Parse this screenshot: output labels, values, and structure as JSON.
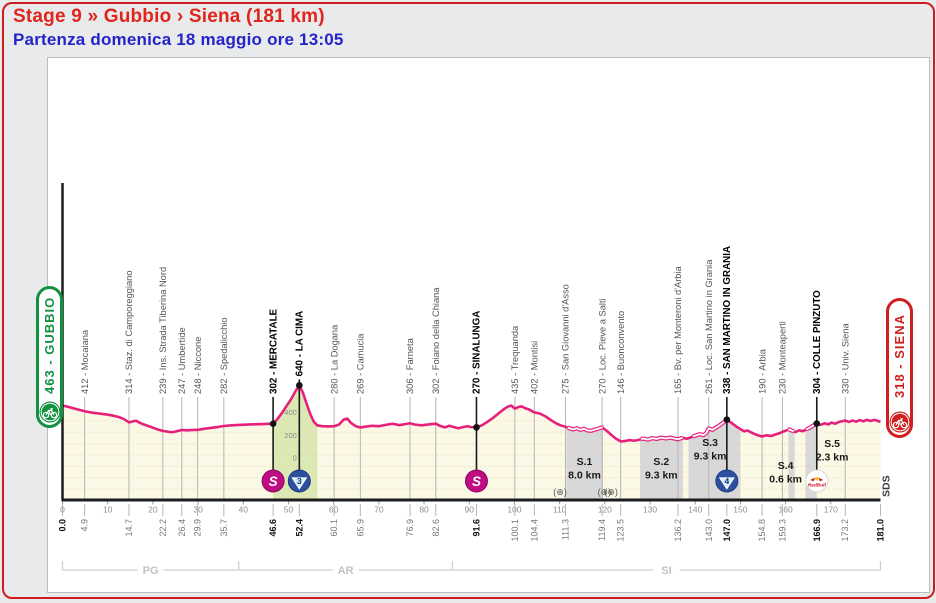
{
  "header": {
    "title": "Stage 9 » Gubbio › Siena (181 km)",
    "subtitle": "Partenza domenica 18 maggio ore 13:05",
    "title_color": "#e0251c",
    "subtitle_color": "#2424c8"
  },
  "chart_data": {
    "type": "area",
    "title": "Stage 9 elevation profile Gubbio - Siena",
    "x_unit": "km",
    "y_unit": "m",
    "xlim": [
      0,
      181
    ],
    "ylim": [
      0,
      700
    ],
    "x_ticks": [
      0,
      10,
      20,
      30,
      40,
      50,
      60,
      70,
      80,
      90,
      100,
      110,
      120,
      130,
      140,
      150,
      160,
      170
    ],
    "elev_scale": {
      "km": 52.4,
      "values": [
        "400",
        "200",
        "0"
      ]
    },
    "start": {
      "label": "463 - GUBBIO",
      "km": 0,
      "elev": 463,
      "km_label": "0.0",
      "color": "#12913e"
    },
    "finish": {
      "label": "318 - SIENA",
      "km": 181,
      "elev": 318,
      "km_label": "181.0",
      "color": "#cf1f1f"
    },
    "waypoints": [
      {
        "km": 4.9,
        "km_label": "4.9",
        "elev": 412,
        "label": "412 - Mocaiana",
        "bold": false
      },
      {
        "km": 14.7,
        "km_label": "14.7",
        "elev": 314,
        "label": "314 - Staz. di Camporeggiano",
        "bold": false
      },
      {
        "km": 22.2,
        "km_label": "22.2",
        "elev": 239,
        "label": "239 - Ins. Strada Tiberina Nord",
        "bold": false
      },
      {
        "km": 26.4,
        "km_label": "26.4",
        "elev": 247,
        "label": "247 - Umbertide",
        "bold": false
      },
      {
        "km": 29.9,
        "km_label": "29.9",
        "elev": 248,
        "label": "248 - Niccone",
        "bold": false
      },
      {
        "km": 35.7,
        "km_label": "35.7",
        "elev": 282,
        "label": "282 - Spedalicchio",
        "bold": false
      },
      {
        "km": 46.6,
        "km_label": "46.6",
        "elev": 302,
        "label": "302 - MERCATALE",
        "bold": true,
        "icon": "sprint"
      },
      {
        "km": 52.4,
        "km_label": "52.4",
        "elev": 640,
        "label": "640 - LA CIMA",
        "bold": true,
        "icon": "cat3"
      },
      {
        "km": 60.1,
        "km_label": "60.1",
        "elev": 280,
        "label": "280 - La Dogana",
        "bold": false
      },
      {
        "km": 65.9,
        "km_label": "65.9",
        "elev": 269,
        "label": "269 - Camucia",
        "bold": false
      },
      {
        "km": 76.9,
        "km_label": "76.9",
        "elev": 306,
        "label": "306 - Farneta",
        "bold": false
      },
      {
        "km": 82.6,
        "km_label": "82.6",
        "elev": 302,
        "label": "302 - Foiano della Chiana",
        "bold": false
      },
      {
        "km": 91.6,
        "km_label": "91.6",
        "elev": 270,
        "label": "270 - SINALUNGA",
        "bold": true,
        "icon": "sprint"
      },
      {
        "km": 100.1,
        "km_label": "100.1",
        "elev": 435,
        "label": "435 - Trequanda",
        "bold": false
      },
      {
        "km": 104.4,
        "km_label": "104.4",
        "elev": 402,
        "label": "402 - Montisi",
        "bold": false
      },
      {
        "km": 111.3,
        "km_label": "111.3",
        "elev": 275,
        "label": "275 - San Giovanni d'Asso",
        "bold": false
      },
      {
        "km": 119.4,
        "km_label": "119.4",
        "elev": 270,
        "label": "270 - Loc. Pieve a Salti",
        "bold": false
      },
      {
        "km": 123.5,
        "km_label": "123.5",
        "elev": 146,
        "label": "146 - Buonconvento",
        "bold": false
      },
      {
        "km": 136.2,
        "km_label": "136.2",
        "elev": 165,
        "label": "165 - Bv. per Monteroni d'Arbia",
        "bold": false
      },
      {
        "km": 143.0,
        "km_label": "143.0",
        "elev": 261,
        "label": "261 - Loc. San Martino in Grania",
        "bold": false
      },
      {
        "km": 147.0,
        "km_label": "147.0",
        "elev": 338,
        "label": "338 - SAN MARTINO IN GRANIA",
        "bold": true,
        "icon": "cat4"
      },
      {
        "km": 154.8,
        "km_label": "154.8",
        "elev": 190,
        "label": "190 - Arbia",
        "bold": false
      },
      {
        "km": 159.3,
        "km_label": "159.3",
        "elev": 230,
        "label": "230 - Monteaperti",
        "bold": false
      },
      {
        "km": 166.9,
        "km_label": "166.9",
        "elev": 304,
        "label": "304 - COLLE PINZUTO",
        "bold": true,
        "icon": "redbull"
      },
      {
        "km": 173.2,
        "km_label": "173.2",
        "elev": 330,
        "label": "330 - Univ. Siena",
        "bold": false
      }
    ],
    "profile": [
      [
        0,
        463
      ],
      [
        1.5,
        448
      ],
      [
        3,
        432
      ],
      [
        4.9,
        412
      ],
      [
        6.5,
        400
      ],
      [
        8,
        392
      ],
      [
        9.5,
        385
      ],
      [
        11,
        375
      ],
      [
        12.5,
        360
      ],
      [
        13.5,
        345
      ],
      [
        14.7,
        314
      ],
      [
        15.5,
        322
      ],
      [
        16.3,
        328
      ],
      [
        17,
        312
      ],
      [
        18,
        295
      ],
      [
        19.5,
        275
      ],
      [
        21,
        252
      ],
      [
        22.2,
        239
      ],
      [
        23.5,
        230
      ],
      [
        24.5,
        228
      ],
      [
        25.5,
        238
      ],
      [
        26.4,
        247
      ],
      [
        27.5,
        244
      ],
      [
        28.5,
        246
      ],
      [
        29.9,
        248
      ],
      [
        31.5,
        258
      ],
      [
        33,
        266
      ],
      [
        34.5,
        274
      ],
      [
        35.7,
        282
      ],
      [
        37.5,
        288
      ],
      [
        39.5,
        292
      ],
      [
        41.5,
        296
      ],
      [
        43.5,
        298
      ],
      [
        45,
        300
      ],
      [
        46.6,
        302
      ],
      [
        47.6,
        345
      ],
      [
        48.6,
        400
      ],
      [
        49.6,
        460
      ],
      [
        50.6,
        520
      ],
      [
        51.5,
        585
      ],
      [
        52.4,
        640
      ],
      [
        53.2,
        575
      ],
      [
        54,
        480
      ],
      [
        54.8,
        390
      ],
      [
        55.6,
        320
      ],
      [
        56.4,
        287
      ],
      [
        57.5,
        280
      ],
      [
        58.8,
        278
      ],
      [
        60.1,
        280
      ],
      [
        61.2,
        295
      ],
      [
        62.2,
        338
      ],
      [
        63,
        348
      ],
      [
        63.8,
        310
      ],
      [
        64.8,
        282
      ],
      [
        65.9,
        269
      ],
      [
        67,
        276
      ],
      [
        68.5,
        284
      ],
      [
        70,
        280
      ],
      [
        71.5,
        292
      ],
      [
        73,
        302
      ],
      [
        74.5,
        290
      ],
      [
        75.5,
        296
      ],
      [
        76.9,
        306
      ],
      [
        78,
        294
      ],
      [
        79.5,
        288
      ],
      [
        81,
        296
      ],
      [
        82.6,
        302
      ],
      [
        83.6,
        282
      ],
      [
        84.6,
        270
      ],
      [
        85.6,
        284
      ],
      [
        86.6,
        272
      ],
      [
        87.6,
        262
      ],
      [
        88.6,
        272
      ],
      [
        89.6,
        280
      ],
      [
        90.5,
        272
      ],
      [
        91.6,
        270
      ],
      [
        92.8,
        288
      ],
      [
        94,
        318
      ],
      [
        95.2,
        352
      ],
      [
        96.4,
        390
      ],
      [
        97.5,
        425
      ],
      [
        98.5,
        452
      ],
      [
        99.3,
        462
      ],
      [
        100.1,
        435
      ],
      [
        100.8,
        448
      ],
      [
        101.6,
        455
      ],
      [
        102.4,
        438
      ],
      [
        103.2,
        428
      ],
      [
        104.4,
        402
      ],
      [
        105.6,
        392
      ],
      [
        106.8,
        368
      ],
      [
        108,
        336
      ],
      [
        109.2,
        306
      ],
      [
        110.2,
        288
      ],
      [
        111.3,
        275
      ],
      [
        112.2,
        262
      ],
      [
        113,
        252
      ],
      [
        113.8,
        262
      ],
      [
        114.6,
        248
      ],
      [
        115.4,
        258
      ],
      [
        116.2,
        242
      ],
      [
        117,
        240
      ],
      [
        118,
        252
      ],
      [
        119.4,
        270
      ],
      [
        120.4,
        240
      ],
      [
        121.4,
        205
      ],
      [
        122.4,
        172
      ],
      [
        123.5,
        146
      ],
      [
        124.5,
        150
      ],
      [
        125.5,
        158
      ],
      [
        126.5,
        152
      ],
      [
        127.5,
        160
      ],
      [
        128.5,
        172
      ],
      [
        129.5,
        162
      ],
      [
        130.5,
        175
      ],
      [
        131.5,
        168
      ],
      [
        132.5,
        180
      ],
      [
        133.5,
        172
      ],
      [
        134.5,
        180
      ],
      [
        135.3,
        172
      ],
      [
        136.2,
        165
      ],
      [
        137.2,
        178
      ],
      [
        138.2,
        170
      ],
      [
        139,
        182
      ],
      [
        140,
        196
      ],
      [
        141,
        210
      ],
      [
        141.8,
        202
      ],
      [
        142.4,
        218
      ],
      [
        143,
        261
      ],
      [
        143.8,
        248
      ],
      [
        144.6,
        268
      ],
      [
        145.4,
        288
      ],
      [
        146.2,
        312
      ],
      [
        147,
        338
      ],
      [
        148,
        310
      ],
      [
        149,
        280
      ],
      [
        150,
        255
      ],
      [
        150.8,
        235
      ],
      [
        151.6,
        242
      ],
      [
        152.4,
        225
      ],
      [
        153.2,
        210
      ],
      [
        154,
        198
      ],
      [
        154.8,
        190
      ],
      [
        155.8,
        200
      ],
      [
        156.8,
        194
      ],
      [
        157.8,
        208
      ],
      [
        158.6,
        218
      ],
      [
        159.3,
        230
      ],
      [
        160.1,
        242
      ],
      [
        160.8,
        252
      ],
      [
        161.5,
        240
      ],
      [
        162.2,
        228
      ],
      [
        163,
        244
      ],
      [
        163.8,
        236
      ],
      [
        164.6,
        252
      ],
      [
        165.4,
        268
      ],
      [
        166.1,
        286
      ],
      [
        166.9,
        304
      ],
      [
        167.8,
        292
      ],
      [
        168.6,
        306
      ],
      [
        169.4,
        296
      ],
      [
        170.2,
        312
      ],
      [
        171,
        302
      ],
      [
        171.8,
        318
      ],
      [
        172.5,
        324
      ],
      [
        173.2,
        330
      ],
      [
        174,
        318
      ],
      [
        174.8,
        330
      ],
      [
        175.6,
        320
      ],
      [
        176.4,
        334
      ],
      [
        177.2,
        324
      ],
      [
        178,
        336
      ],
      [
        178.8,
        326
      ],
      [
        179.6,
        336
      ],
      [
        180.3,
        328
      ],
      [
        181,
        318
      ]
    ],
    "climb_fill": {
      "from": 46.6,
      "to": 56.4,
      "color": "#dce9b4"
    },
    "gravel_sectors": [
      {
        "id": "S.1",
        "length": "8.0 km",
        "from": 111.5,
        "to": 119.6,
        "label_km": 115.5,
        "label_y": 465
      },
      {
        "id": "S.2",
        "length": "9.3 km",
        "from": 127.8,
        "to": 137.3,
        "label_km": 132.5,
        "label_y": 465
      },
      {
        "id": "S.3",
        "length": "9.3 km",
        "from": 138.5,
        "to": 150.0,
        "label_km": 143.3,
        "label_y": 446
      },
      {
        "id": "S.4",
        "length": "0.6 km",
        "from": 160.6,
        "to": 162.0,
        "label_km": 160.0,
        "label_y": 469
      },
      {
        "id": "S.5",
        "length": "2.3 km",
        "from": 164.4,
        "to": 166.9,
        "label_km": 170.3,
        "label_y": 447
      }
    ],
    "gravel_line_segments": [
      [
        111.8,
        119.5
      ],
      [
        128,
        137.2
      ],
      [
        139.5,
        147
      ],
      [
        160.6,
        161.8
      ],
      [
        164.6,
        166.8
      ]
    ],
    "feed_zones": [
      110.1,
      119.9,
      121.4
    ],
    "feed_zone_glyph": "(⊕)",
    "provinces": [
      {
        "label": "PG",
        "from": 0,
        "to": 39
      },
      {
        "label": "AR",
        "from": 39,
        "to": 86.3
      },
      {
        "label": "SI",
        "from": 86.3,
        "to": 181
      }
    ],
    "watermark": "SDS",
    "icons": {
      "sprint_glyph": "S",
      "cat3_glyph": "3",
      "cat4_glyph": "4",
      "redbull_glyph": "RedBull"
    },
    "colors": {
      "profile_line": "#e6217c",
      "area_fill": "#fcf8e6",
      "area_dots": "#d6cba2",
      "sector_band": "#d8d8d8",
      "climb_fill": "#dce9b4",
      "sprint": "#bf0d83",
      "kom": "#2c4f9e",
      "redbull_red": "#cc1122"
    }
  }
}
